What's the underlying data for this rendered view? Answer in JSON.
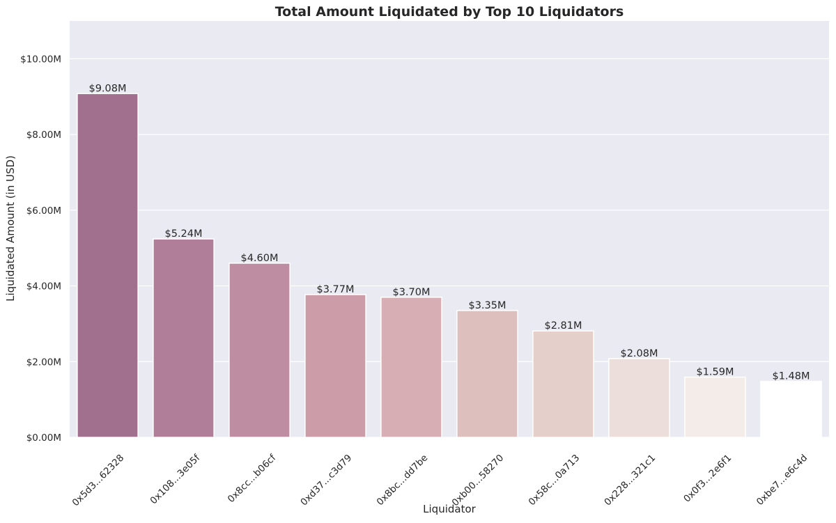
{
  "chart_data": {
    "type": "bar",
    "title": "Total Amount Liquidated by Top 10 Liquidators",
    "xlabel": "Liquidator",
    "ylabel": "Liquidated Amount (in USD)",
    "categories": [
      "0x5d3...62328",
      "0x108...3e05f",
      "0x8cc...b06cf",
      "0xd37...c3d79",
      "0x8bc...dd7be",
      "0xb00...58270",
      "0x58c...0a713",
      "0x228...321c1",
      "0x0f3...2e6f1",
      "0xbe7...e6c4d"
    ],
    "values": [
      9.08,
      5.24,
      4.6,
      3.77,
      3.7,
      3.35,
      2.81,
      2.08,
      1.59,
      1.48
    ],
    "value_labels": [
      "$9.08M",
      "$5.24M",
      "$4.60M",
      "$3.77M",
      "$3.70M",
      "$3.35M",
      "$2.81M",
      "$2.08M",
      "$1.59M",
      "$1.48M"
    ],
    "value_unit": "millions USD",
    "ylim": [
      0,
      11
    ],
    "yticks": [
      0,
      2,
      4,
      6,
      8,
      10
    ],
    "ytick_labels": [
      "$0.00M",
      "$2.00M",
      "$4.00M",
      "$6.00M",
      "$8.00M",
      "$10.00M"
    ],
    "grid": true,
    "colors": {
      "plot_background": "#eaeaf2",
      "gridline": "#ffffff",
      "bar_edge": "#ffffff",
      "text": "#262626",
      "bars": [
        "#a1708e",
        "#b07e98",
        "#bf8da2",
        "#cc9da9",
        "#d6aeb3",
        "#ddbfbd",
        "#e5cfca",
        "#ecdfdb",
        "#f4ece8",
        "#ffffff"
      ]
    }
  }
}
